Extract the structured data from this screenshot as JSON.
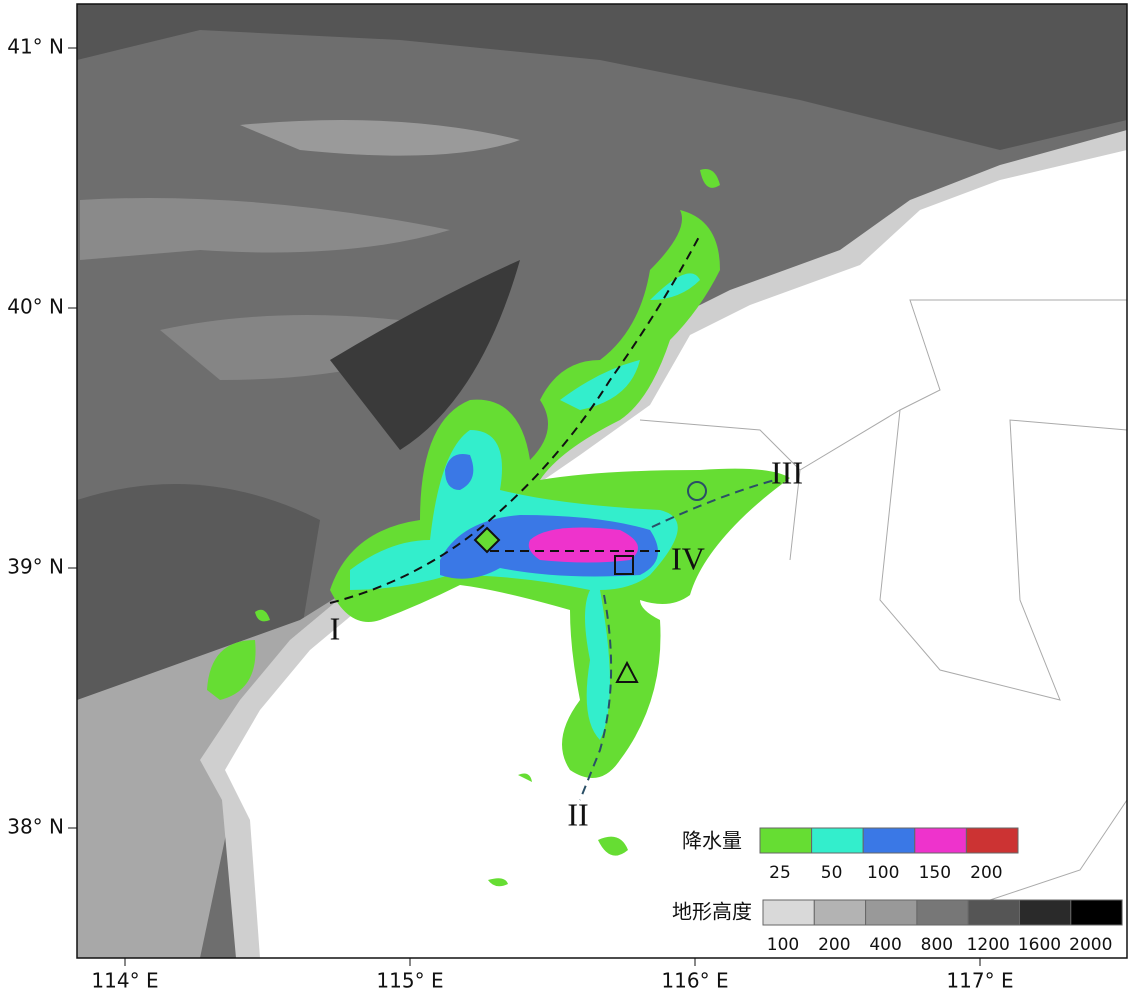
{
  "map": {
    "lat_ticks": [
      {
        "value": 41,
        "label": "41° N"
      },
      {
        "value": 40,
        "label": "40° N"
      },
      {
        "value": 39,
        "label": "39° N"
      },
      {
        "value": 38,
        "label": "38° N"
      }
    ],
    "lon_ticks": [
      {
        "value": 114,
        "label": "114° E"
      },
      {
        "value": 115,
        "label": "115° E"
      },
      {
        "value": 116,
        "label": "116° E"
      },
      {
        "value": 117,
        "label": "117° E"
      }
    ],
    "section_labels": [
      "I",
      "II",
      "III",
      "IV"
    ],
    "precip_legend": {
      "title": "降水量",
      "levels": [
        25,
        50,
        100,
        150,
        200
      ],
      "colors": [
        "#66dd33",
        "#33eecc",
        "#3a78e6",
        "#ee33cc",
        "#cc3333"
      ]
    },
    "terrain_legend": {
      "title": "地形高度",
      "levels": [
        100,
        200,
        400,
        800,
        1200,
        1600,
        2000
      ],
      "colors": [
        "#d9d9d9",
        "#b3b3b3",
        "#999999",
        "#777777",
        "#555555",
        "#2a2a2a",
        "#000000"
      ]
    }
  }
}
